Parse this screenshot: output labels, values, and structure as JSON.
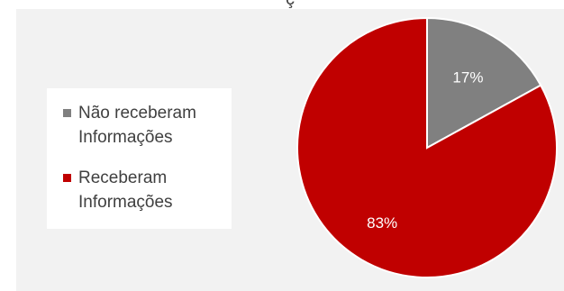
{
  "chart_data": {
    "type": "pie",
    "title_fragment": "ç",
    "categories": [
      "Não receberam Informações",
      "Receberam Informações"
    ],
    "values": [
      17,
      83
    ],
    "labels": [
      "17%",
      "83%"
    ],
    "colors": [
      "#808080",
      "#c00000"
    ],
    "legend_position": "left"
  }
}
